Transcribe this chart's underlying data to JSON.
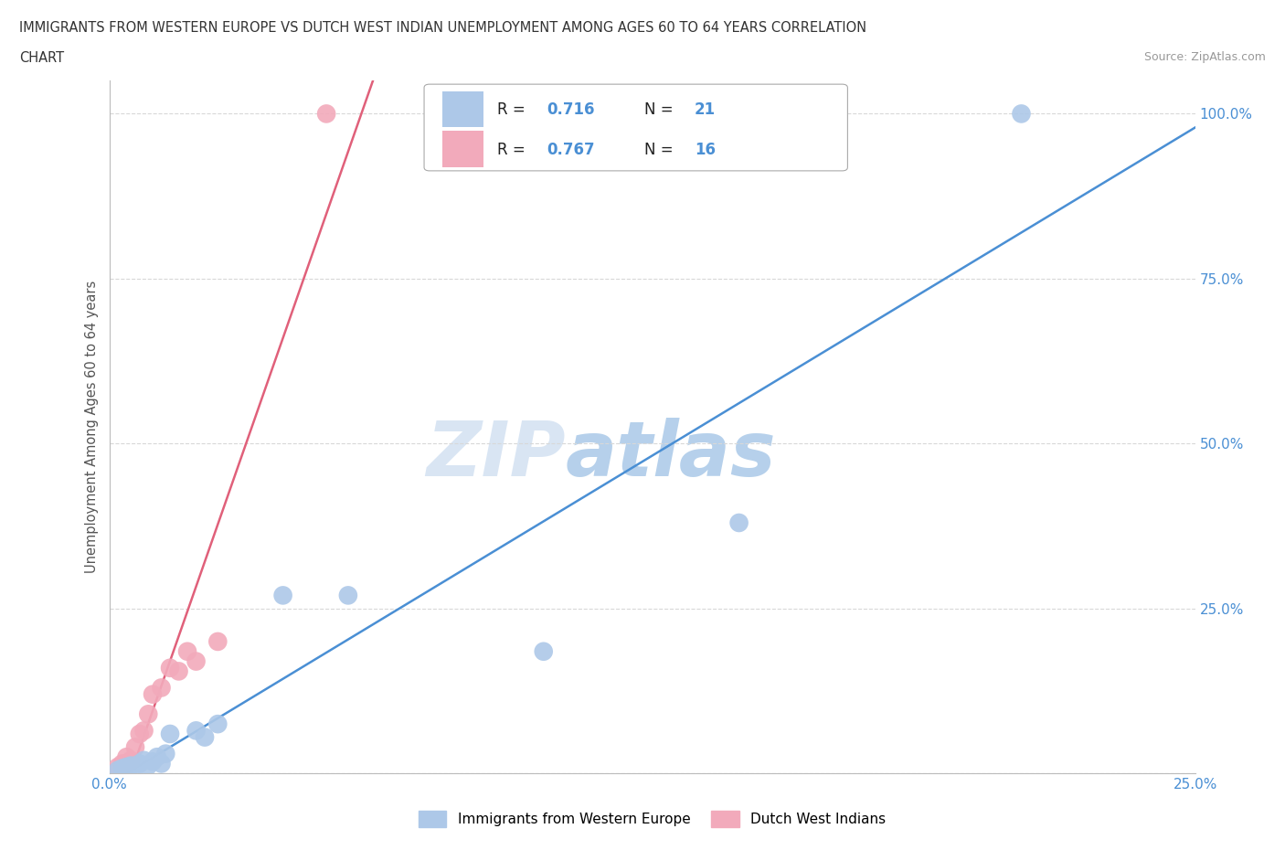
{
  "title_line1": "IMMIGRANTS FROM WESTERN EUROPE VS DUTCH WEST INDIAN UNEMPLOYMENT AMONG AGES 60 TO 64 YEARS CORRELATION",
  "title_line2": "CHART",
  "source_text": "Source: ZipAtlas.com",
  "ylabel": "Unemployment Among Ages 60 to 64 years",
  "watermark_zip": "ZIP",
  "watermark_atlas": "atlas",
  "xlim": [
    0.0,
    0.25
  ],
  "ylim": [
    0.0,
    1.05
  ],
  "xticks": [
    0.0,
    0.05,
    0.1,
    0.15,
    0.2,
    0.25
  ],
  "xtick_labels": [
    "0.0%",
    "",
    "",
    "",
    "",
    "25.0%"
  ],
  "ytick_positions": [
    0.0,
    0.25,
    0.5,
    0.75,
    1.0
  ],
  "ytick_labels": [
    "",
    "25.0%",
    "50.0%",
    "75.0%",
    "100.0%"
  ],
  "blue_color": "#adc8e8",
  "pink_color": "#f2aabb",
  "blue_line_color": "#4a8fd4",
  "pink_line_color": "#e0607a",
  "R_blue": 0.716,
  "N_blue": 21,
  "R_pink": 0.767,
  "N_pink": 16,
  "legend_blue_label": "Immigrants from Western Europe",
  "legend_pink_label": "Dutch West Indians",
  "blue_scatter_x": [
    0.002,
    0.003,
    0.004,
    0.005,
    0.006,
    0.007,
    0.008,
    0.009,
    0.01,
    0.011,
    0.012,
    0.013,
    0.014,
    0.02,
    0.022,
    0.025,
    0.04,
    0.055,
    0.1,
    0.145,
    0.21
  ],
  "blue_scatter_y": [
    0.005,
    0.008,
    0.01,
    0.012,
    0.01,
    0.015,
    0.02,
    0.012,
    0.018,
    0.025,
    0.015,
    0.03,
    0.06,
    0.065,
    0.055,
    0.075,
    0.27,
    0.27,
    0.185,
    0.38,
    1.0
  ],
  "pink_scatter_x": [
    0.002,
    0.003,
    0.004,
    0.005,
    0.006,
    0.007,
    0.008,
    0.009,
    0.01,
    0.012,
    0.014,
    0.016,
    0.018,
    0.02,
    0.025,
    0.05
  ],
  "pink_scatter_y": [
    0.01,
    0.015,
    0.025,
    0.02,
    0.04,
    0.06,
    0.065,
    0.09,
    0.12,
    0.13,
    0.16,
    0.155,
    0.185,
    0.17,
    0.2,
    1.0
  ],
  "background_color": "#ffffff",
  "grid_color": "#d8d8d8"
}
